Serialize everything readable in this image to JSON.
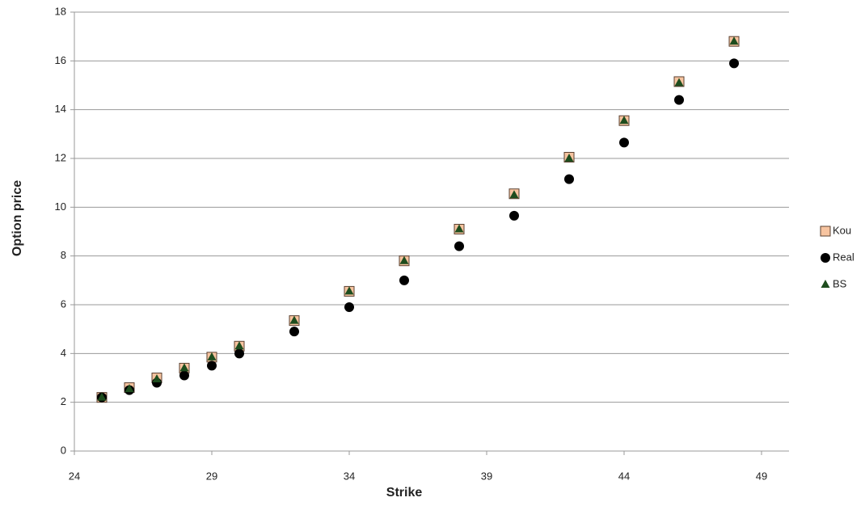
{
  "chart_data": {
    "type": "scatter",
    "x_label": "Strike",
    "y_label": "Option price",
    "x": [
      25,
      26,
      27,
      28,
      29,
      30,
      32,
      34,
      36,
      38,
      40,
      42,
      44,
      46,
      48
    ],
    "series": [
      {
        "name": "Kou",
        "color": "#f7c4a0",
        "marker": "square",
        "values": [
          2.2,
          2.6,
          3.0,
          3.4,
          3.85,
          4.3,
          5.35,
          6.55,
          7.8,
          9.1,
          10.55,
          12.05,
          13.55,
          15.15,
          16.8
        ]
      },
      {
        "name": "Real",
        "color": "#000000",
        "marker": "circle",
        "values": [
          2.2,
          2.5,
          2.8,
          3.1,
          3.5,
          4.0,
          4.9,
          5.9,
          7.0,
          8.4,
          9.65,
          11.15,
          12.65,
          14.4,
          15.9
        ]
      },
      {
        "name": "BS",
        "color": "#1e4d1e",
        "marker": "triangle",
        "values": [
          2.2,
          2.55,
          2.95,
          3.4,
          3.85,
          4.3,
          5.35,
          6.55,
          7.8,
          9.1,
          10.5,
          12.0,
          13.55,
          15.1,
          16.8
        ]
      }
    ],
    "xlim": [
      24,
      50
    ],
    "xticks": [
      24,
      29,
      34,
      39,
      44,
      49
    ],
    "ylim": [
      0,
      18
    ],
    "yticks": [
      0,
      2,
      4,
      6,
      8,
      10,
      12,
      14,
      16,
      18
    ],
    "grid": true,
    "legend": "right"
  }
}
